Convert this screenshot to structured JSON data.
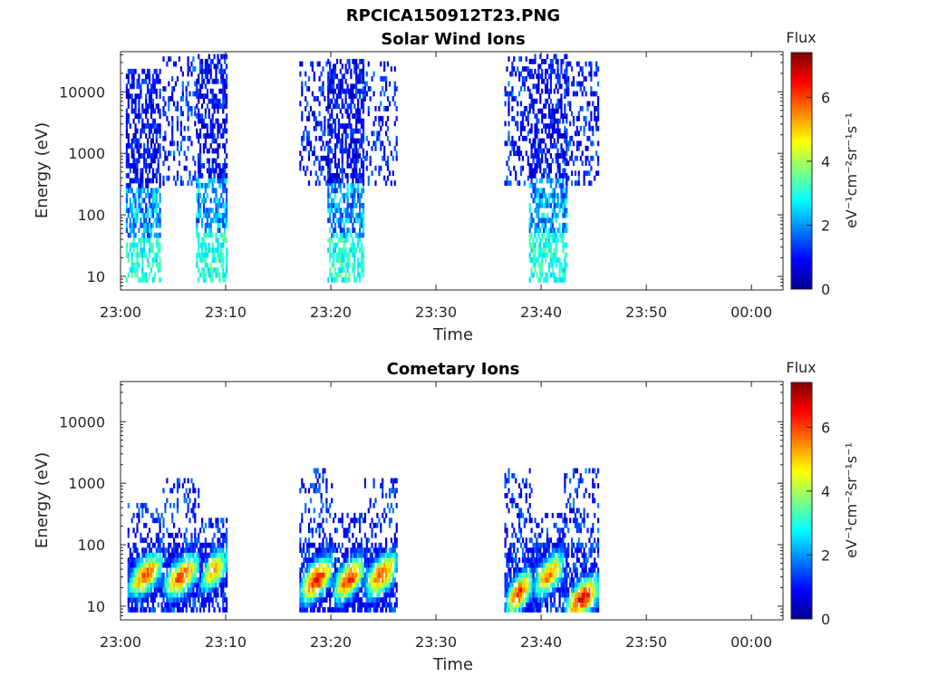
{
  "figure_title": "RPCICA150912T23.PNG",
  "colorbar": {
    "title": "Flux",
    "label": "eV⁻¹cm⁻²sr⁻¹s⁻¹",
    "ticks": [
      "0",
      "2",
      "4",
      "6"
    ],
    "range": [
      0,
      7.4
    ],
    "colormap": [
      "#00008f",
      "#0000ff",
      "#0080ff",
      "#00ffff",
      "#80ff80",
      "#ffff00",
      "#ff8000",
      "#ff0000",
      "#800000"
    ]
  },
  "chart_data": [
    {
      "type": "heatmap",
      "title": "Solar Wind Ions",
      "xlabel": "Time",
      "ylabel": "Energy (eV)",
      "x_ticks": [
        "23:00",
        "23:10",
        "23:20",
        "23:30",
        "23:40",
        "23:50",
        "00:00"
      ],
      "y_ticks": [
        "10",
        "100",
        "1000",
        "10000"
      ],
      "y_scale": "log",
      "xlim": [
        "23:00",
        "00:03"
      ],
      "ylim": [
        6,
        45000
      ],
      "grid": false,
      "bursts": [
        {
          "start": "23:00:30",
          "end": "23:03:50",
          "emin": 8,
          "emax": 20000,
          "flux_profile": "low"
        },
        {
          "start": "23:04:00",
          "end": "23:07:10",
          "emin": 300,
          "emax": 35000,
          "flux_profile": "very_low"
        },
        {
          "start": "23:07:10",
          "end": "23:10:10",
          "emin": 8,
          "emax": 35000,
          "flux_profile": "low"
        },
        {
          "start": "23:17:00",
          "end": "23:20:00",
          "emin": 300,
          "emax": 30000,
          "flux_profile": "very_low"
        },
        {
          "start": "23:19:40",
          "end": "23:23:10",
          "emin": 8,
          "emax": 30000,
          "flux_profile": "low"
        },
        {
          "start": "23:23:00",
          "end": "23:26:20",
          "emin": 300,
          "emax": 30000,
          "flux_profile": "very_low"
        },
        {
          "start": "23:36:30",
          "end": "23:38:50",
          "emin": 300,
          "emax": 35000,
          "flux_profile": "very_low"
        },
        {
          "start": "23:38:50",
          "end": "23:42:30",
          "emin": 8,
          "emax": 35000,
          "flux_profile": "low"
        },
        {
          "start": "23:42:10",
          "end": "23:45:30",
          "emin": 300,
          "emax": 30000,
          "flux_profile": "very_low"
        }
      ]
    },
    {
      "type": "heatmap",
      "title": "Cometary Ions",
      "xlabel": "Time",
      "ylabel": "Energy (eV)",
      "x_ticks": [
        "23:00",
        "23:10",
        "23:20",
        "23:30",
        "23:40",
        "23:50",
        "00:00"
      ],
      "y_ticks": [
        "10",
        "100",
        "1000",
        "10000"
      ],
      "y_scale": "log",
      "xlim": [
        "23:00",
        "00:03"
      ],
      "ylim": [
        6,
        45000
      ],
      "grid": false,
      "bursts": [
        {
          "start": "23:00:40",
          "end": "23:04:00",
          "emin": 8,
          "emax": 400,
          "peak_energy": 30,
          "peak_flux": 5.8
        },
        {
          "start": "23:04:00",
          "end": "23:07:30",
          "emin": 8,
          "emax": 1200,
          "peak_energy": 28,
          "peak_flux": 6.0
        },
        {
          "start": "23:07:30",
          "end": "23:10:10",
          "emin": 8,
          "emax": 250,
          "peak_energy": 35,
          "peak_flux": 5.2
        },
        {
          "start": "23:17:00",
          "end": "23:20:10",
          "emin": 8,
          "emax": 1500,
          "peak_energy": 25,
          "peak_flux": 6.5
        },
        {
          "start": "23:20:10",
          "end": "23:23:10",
          "emin": 8,
          "emax": 300,
          "peak_energy": 25,
          "peak_flux": 6.2
        },
        {
          "start": "23:23:10",
          "end": "23:26:20",
          "emin": 8,
          "emax": 1200,
          "peak_energy": 30,
          "peak_flux": 6.0
        },
        {
          "start": "23:36:30",
          "end": "23:39:10",
          "emin": 8,
          "emax": 1500,
          "peak_energy": 15,
          "peak_flux": 6.2
        },
        {
          "start": "23:39:10",
          "end": "23:42:10",
          "emin": 8,
          "emax": 300,
          "peak_energy": 30,
          "peak_flux": 5.6
        },
        {
          "start": "23:42:10",
          "end": "23:45:30",
          "emin": 8,
          "emax": 1500,
          "peak_energy": 12,
          "peak_flux": 6.6
        }
      ]
    }
  ]
}
